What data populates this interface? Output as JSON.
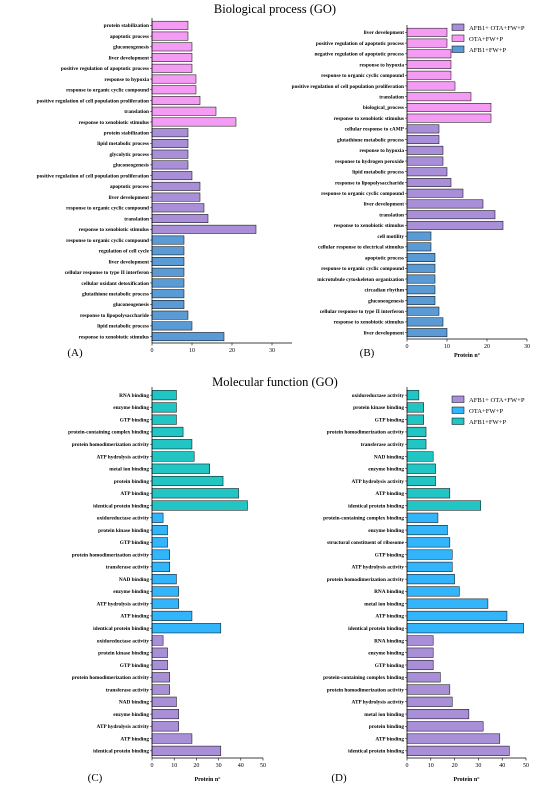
{
  "titles": {
    "biological_process": "Biological process (GO)",
    "molecular_function": "Molecular function (GO)"
  },
  "colors": {
    "purple": "#a98fd8",
    "pink": "#f49cf4",
    "steelblue": "#5a9bd5",
    "skyblue": "#33b5fb",
    "teal": "#21c5c3"
  },
  "legends": {
    "B": [
      {
        "label": "AFB1+ OTA+FW+P",
        "color": "#a98fd8"
      },
      {
        "label": "OTA+FW+P",
        "color": "#f49cf4"
      },
      {
        "label": "AFB1+FW+P",
        "color": "#5a9bd5"
      }
    ],
    "D": [
      {
        "label": "AFB1+ OTA+FW+P",
        "color": "#a98fd8"
      },
      {
        "label": "OTA+FW+P",
        "color": "#33b5fb"
      },
      {
        "label": "AFB1+FW+P",
        "color": "#21c5c3"
      }
    ]
  },
  "chart_data": [
    {
      "panel": "(A)",
      "type": "bar",
      "orientation": "horizontal",
      "xlabel": "",
      "xlim": [
        0,
        35
      ],
      "xticks": [
        0,
        10,
        20,
        30
      ],
      "bars": [
        {
          "label": "protein stabilization",
          "value": 9,
          "group": "pink"
        },
        {
          "label": "apoptotic process",
          "value": 9,
          "group": "pink"
        },
        {
          "label": "gluconeogenesis",
          "value": 10,
          "group": "pink"
        },
        {
          "label": "liver development",
          "value": 10,
          "group": "pink"
        },
        {
          "label": "positive regulation of apoptotic process",
          "value": 10,
          "group": "pink"
        },
        {
          "label": "response to hypoxia",
          "value": 11,
          "group": "pink"
        },
        {
          "label": "response to organic cyclic compound",
          "value": 11,
          "group": "pink"
        },
        {
          "label": "positive regulation of cell population proliferation",
          "value": 12,
          "group": "pink"
        },
        {
          "label": "translation",
          "value": 16,
          "group": "pink"
        },
        {
          "label": "response to xenobiotic stimulus",
          "value": 21,
          "group": "pink"
        },
        {
          "label": "protein stabilization",
          "value": 9,
          "group": "purple"
        },
        {
          "label": "lipid metabolic process",
          "value": 9,
          "group": "purple"
        },
        {
          "label": "glycolytic process",
          "value": 9,
          "group": "purple"
        },
        {
          "label": "gluconeogenesis",
          "value": 9,
          "group": "purple"
        },
        {
          "label": "positive regulation of cell population proliferation",
          "value": 10,
          "group": "purple"
        },
        {
          "label": "apoptotic process",
          "value": 12,
          "group": "purple"
        },
        {
          "label": "liver development",
          "value": 12,
          "group": "purple"
        },
        {
          "label": "response to organic cyclic compound",
          "value": 13,
          "group": "purple"
        },
        {
          "label": "translation",
          "value": 14,
          "group": "purple"
        },
        {
          "label": "response to xenobiotic stimulus",
          "value": 26,
          "group": "purple"
        },
        {
          "label": "response to organic cyclic compound",
          "value": 8,
          "group": "steelblue"
        },
        {
          "label": "regulation of cell cycle",
          "value": 8,
          "group": "steelblue"
        },
        {
          "label": "liver development",
          "value": 8,
          "group": "steelblue"
        },
        {
          "label": "cellular response to type II interferon",
          "value": 8,
          "group": "steelblue"
        },
        {
          "label": "cellular oxidant detoxification",
          "value": 8,
          "group": "steelblue"
        },
        {
          "label": "glutathione metabolic process",
          "value": 8,
          "group": "steelblue"
        },
        {
          "label": "gluconeogenesis",
          "value": 8,
          "group": "steelblue"
        },
        {
          "label": "response to lipopolysaccharide",
          "value": 9,
          "group": "steelblue"
        },
        {
          "label": "lipid metabolic process",
          "value": 10,
          "group": "steelblue"
        },
        {
          "label": "response to xenobiotic stimulus",
          "value": 18,
          "group": "steelblue"
        }
      ]
    },
    {
      "panel": "(B)",
      "type": "bar",
      "orientation": "horizontal",
      "xlabel": "Protein n°",
      "xlim": [
        0,
        30
      ],
      "xticks": [
        0,
        10,
        20,
        30
      ],
      "bars": [
        {
          "label": "liver development",
          "value": 10,
          "group": "pink"
        },
        {
          "label": "positive regulation of apoptotic process",
          "value": 10,
          "group": "pink"
        },
        {
          "label": "negative regulation of apoptotic process",
          "value": 11,
          "group": "pink"
        },
        {
          "label": "response to hypoxia",
          "value": 11,
          "group": "pink"
        },
        {
          "label": "response to organic cyclic compound",
          "value": 11,
          "group": "pink"
        },
        {
          "label": "positive regulation of cell population proliferation",
          "value": 12,
          "group": "pink"
        },
        {
          "label": "translation",
          "value": 16,
          "group": "pink"
        },
        {
          "label": "biological_process",
          "value": 21,
          "group": "pink"
        },
        {
          "label": "response to xenobiotic stimulus",
          "value": 21,
          "group": "pink"
        },
        {
          "label": "cellular response to cAMP",
          "value": 8,
          "group": "purple"
        },
        {
          "label": "glutathione metabolic process",
          "value": 8,
          "group": "purple"
        },
        {
          "label": "response to hypoxia",
          "value": 9,
          "group": "purple"
        },
        {
          "label": "response to hydrogen peroxide",
          "value": 9,
          "group": "purple"
        },
        {
          "label": "lipid metabolic process",
          "value": 10,
          "group": "purple"
        },
        {
          "label": "response to lipopolysaccharide",
          "value": 11,
          "group": "purple"
        },
        {
          "label": "response to organic cyclic compound",
          "value": 14,
          "group": "purple"
        },
        {
          "label": "liver development",
          "value": 19,
          "group": "purple"
        },
        {
          "label": "translation",
          "value": 22,
          "group": "purple"
        },
        {
          "label": "response to xenobiotic stimulus",
          "value": 24,
          "group": "purple"
        },
        {
          "label": "cell motility",
          "value": 6,
          "group": "steelblue"
        },
        {
          "label": "cellular response to electrical stimulus",
          "value": 6,
          "group": "steelblue"
        },
        {
          "label": "apoptotic process",
          "value": 7,
          "group": "steelblue"
        },
        {
          "label": "response to organic cyclic compound",
          "value": 7,
          "group": "steelblue"
        },
        {
          "label": "microtubule cytoskeleton organization",
          "value": 7,
          "group": "steelblue"
        },
        {
          "label": "circadian rhythm",
          "value": 7,
          "group": "steelblue"
        },
        {
          "label": "gluconeogenesis",
          "value": 7,
          "group": "steelblue"
        },
        {
          "label": "cellular response to type II interferon",
          "value": 8,
          "group": "steelblue"
        },
        {
          "label": "response to xenobiotic stimulus",
          "value": 9,
          "group": "steelblue"
        },
        {
          "label": "liver development",
          "value": 10,
          "group": "steelblue"
        }
      ]
    },
    {
      "panel": "(C)",
      "type": "bar",
      "orientation": "horizontal",
      "xlabel": "Protein n°",
      "xlim": [
        0,
        50
      ],
      "xticks": [
        0,
        10,
        20,
        30,
        40,
        50
      ],
      "bars": [
        {
          "label": "RNA binding",
          "value": 11,
          "group": "teal"
        },
        {
          "label": "enzyme binding",
          "value": 11,
          "group": "teal"
        },
        {
          "label": "GTP binding",
          "value": 11,
          "group": "teal"
        },
        {
          "label": "protein-containing complex binding",
          "value": 14,
          "group": "teal"
        },
        {
          "label": "protein homodimerization activity",
          "value": 18,
          "group": "teal"
        },
        {
          "label": "ATP hydrolysis activity",
          "value": 19,
          "group": "teal"
        },
        {
          "label": "metal ion binding",
          "value": 26,
          "group": "teal"
        },
        {
          "label": "protein binding",
          "value": 32,
          "group": "teal"
        },
        {
          "label": "ATP binding",
          "value": 39,
          "group": "teal"
        },
        {
          "label": "identical protein binding",
          "value": 43,
          "group": "teal"
        },
        {
          "label": "oxidoreductase activity",
          "value": 5,
          "group": "skyblue"
        },
        {
          "label": "protein kinase binding",
          "value": 7,
          "group": "skyblue"
        },
        {
          "label": "GTP binding",
          "value": 7,
          "group": "skyblue"
        },
        {
          "label": "protein homodimerization activity",
          "value": 8,
          "group": "skyblue"
        },
        {
          "label": "transferase activity",
          "value": 8,
          "group": "skyblue"
        },
        {
          "label": "NAD binding",
          "value": 11,
          "group": "skyblue"
        },
        {
          "label": "enzyme binding",
          "value": 12,
          "group": "skyblue"
        },
        {
          "label": "ATP hydrolysis activity",
          "value": 12,
          "group": "skyblue"
        },
        {
          "label": "ATP binding",
          "value": 18,
          "group": "skyblue"
        },
        {
          "label": "identical protein binding",
          "value": 31,
          "group": "skyblue"
        },
        {
          "label": "oxidoreductase activity",
          "value": 5,
          "group": "purple"
        },
        {
          "label": "protein kinase binding",
          "value": 7,
          "group": "purple"
        },
        {
          "label": "GTP binding",
          "value": 7,
          "group": "purple"
        },
        {
          "label": "protein homodimerization activity",
          "value": 8,
          "group": "purple"
        },
        {
          "label": "transferase activity",
          "value": 8,
          "group": "purple"
        },
        {
          "label": "NAD binding",
          "value": 11,
          "group": "purple"
        },
        {
          "label": "enzyme binding",
          "value": 12,
          "group": "purple"
        },
        {
          "label": "ATP hydrolysis activity",
          "value": 12,
          "group": "purple"
        },
        {
          "label": "ATP binding",
          "value": 18,
          "group": "purple"
        },
        {
          "label": "identical protein binding",
          "value": 31,
          "group": "purple"
        }
      ]
    },
    {
      "panel": "(D)",
      "type": "bar",
      "orientation": "horizontal",
      "xlabel": "Protein n°",
      "xlim": [
        0,
        50
      ],
      "xticks": [
        0,
        10,
        20,
        30,
        40,
        50
      ],
      "bars": [
        {
          "label": "oxidoreductase activity",
          "value": 5,
          "group": "teal"
        },
        {
          "label": "protein kinase binding",
          "value": 7,
          "group": "teal"
        },
        {
          "label": "GTP binding",
          "value": 7,
          "group": "teal"
        },
        {
          "label": "protein homodimerization activity",
          "value": 8,
          "group": "teal"
        },
        {
          "label": "transferase activity",
          "value": 8,
          "group": "teal"
        },
        {
          "label": "NAD binding",
          "value": 11,
          "group": "teal"
        },
        {
          "label": "enzyme binding",
          "value": 12,
          "group": "teal"
        },
        {
          "label": "ATP hydrolysis activity",
          "value": 12,
          "group": "teal"
        },
        {
          "label": "ATP binding",
          "value": 18,
          "group": "teal"
        },
        {
          "label": "identical protein binding",
          "value": 31,
          "group": "teal"
        },
        {
          "label": "protein-containing complex binding",
          "value": 13,
          "group": "skyblue"
        },
        {
          "label": "enzyme binding",
          "value": 17,
          "group": "skyblue"
        },
        {
          "label": "structural constituent of ribosome",
          "value": 18,
          "group": "skyblue"
        },
        {
          "label": "GTP binding",
          "value": 19,
          "group": "skyblue"
        },
        {
          "label": "ATP hydrolysis activity",
          "value": 19,
          "group": "skyblue"
        },
        {
          "label": "protein homodimerization activity",
          "value": 20,
          "group": "skyblue"
        },
        {
          "label": "RNA binding",
          "value": 22,
          "group": "skyblue"
        },
        {
          "label": "metal ion binding",
          "value": 34,
          "group": "skyblue"
        },
        {
          "label": "ATP binding",
          "value": 42,
          "group": "skyblue"
        },
        {
          "label": "identical protein binding",
          "value": 49,
          "group": "skyblue"
        },
        {
          "label": "RNA binding",
          "value": 11,
          "group": "purple"
        },
        {
          "label": "enzyme binding",
          "value": 11,
          "group": "purple"
        },
        {
          "label": "GTP binding",
          "value": 11,
          "group": "purple"
        },
        {
          "label": "protein-containing complex binding",
          "value": 14,
          "group": "purple"
        },
        {
          "label": "protein homodimerization activity",
          "value": 18,
          "group": "purple"
        },
        {
          "label": "ATP hydrolysis activity",
          "value": 19,
          "group": "purple"
        },
        {
          "label": "metal ion binding",
          "value": 26,
          "group": "purple"
        },
        {
          "label": "protein binding",
          "value": 32,
          "group": "purple"
        },
        {
          "label": "ATP binding",
          "value": 39,
          "group": "purple"
        },
        {
          "label": "identical protein binding",
          "value": 43,
          "group": "purple"
        }
      ]
    }
  ]
}
